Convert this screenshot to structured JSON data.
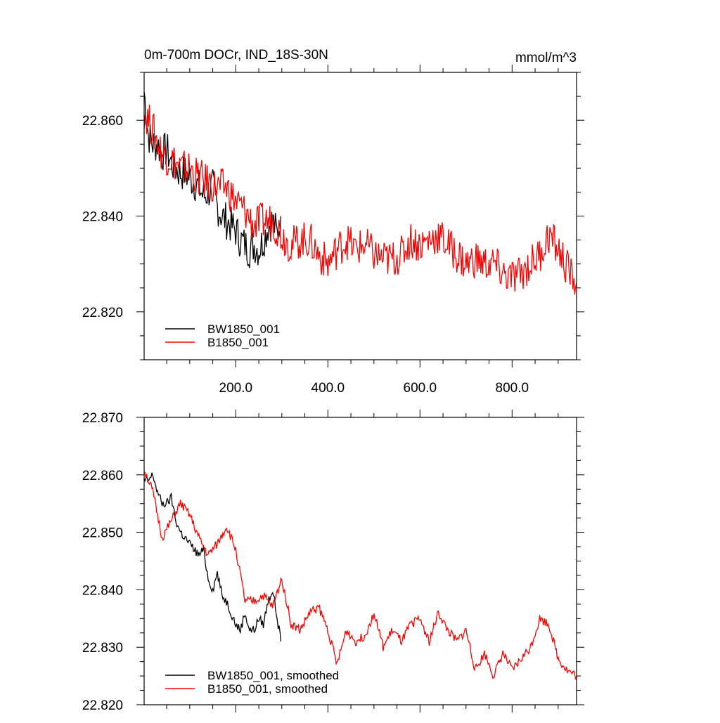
{
  "chart_data": [
    {
      "type": "line",
      "title": "0m-700m DOCr, IND_18S-30N",
      "units": "mmol/m^3",
      "xlim": [
        1,
        940
      ],
      "ylim": [
        22.81,
        22.87
      ],
      "x_tick_labels": [
        "200.0",
        "400.0",
        "600.0",
        "800.0"
      ],
      "x_tick_values": [
        200,
        400,
        600,
        800
      ],
      "y_tick_labels": [
        "22.820",
        "22.840",
        "22.860"
      ],
      "y_tick_values": [
        22.82,
        22.84,
        22.86
      ],
      "legend_position": "bottom-left",
      "series": [
        {
          "name": "BW1850_001",
          "color": "#000000",
          "x": [
            1,
            10,
            20,
            30,
            40,
            50,
            60,
            70,
            80,
            90,
            100,
            110,
            120,
            130,
            140,
            150,
            160,
            170,
            180,
            190,
            200,
            210,
            220,
            230,
            240,
            250,
            260,
            270,
            280,
            290,
            298
          ],
          "y": [
            22.866,
            22.857,
            22.855,
            22.855,
            22.853,
            22.854,
            22.851,
            22.85,
            22.849,
            22.849,
            22.848,
            22.847,
            22.846,
            22.844,
            22.845,
            22.846,
            22.842,
            22.84,
            22.839,
            22.838,
            22.837,
            22.835,
            22.834,
            22.833,
            22.834,
            22.833,
            22.835,
            22.838,
            22.839,
            22.836,
            22.84
          ]
        },
        {
          "name": "B1850_001",
          "color": "#ff0000",
          "x": [
            1,
            20,
            40,
            60,
            80,
            100,
            120,
            140,
            160,
            180,
            200,
            220,
            240,
            260,
            280,
            300,
            320,
            340,
            360,
            380,
            400,
            420,
            440,
            460,
            480,
            500,
            520,
            540,
            560,
            580,
            600,
            620,
            640,
            660,
            680,
            700,
            720,
            740,
            760,
            780,
            800,
            820,
            840,
            860,
            880,
            900,
            920,
            940
          ],
          "y": [
            22.862,
            22.858,
            22.853,
            22.852,
            22.85,
            22.85,
            22.848,
            22.847,
            22.846,
            22.846,
            22.843,
            22.841,
            22.838,
            22.839,
            22.839,
            22.836,
            22.834,
            22.835,
            22.835,
            22.832,
            22.83,
            22.833,
            22.835,
            22.833,
            22.834,
            22.832,
            22.831,
            22.831,
            22.832,
            22.835,
            22.834,
            22.835,
            22.836,
            22.834,
            22.832,
            22.83,
            22.831,
            22.83,
            22.83,
            22.828,
            22.827,
            22.828,
            22.83,
            22.832,
            22.836,
            22.833,
            22.829,
            22.826
          ]
        }
      ]
    },
    {
      "type": "line",
      "title": "",
      "xlim": [
        1,
        940
      ],
      "ylim": [
        22.82,
        22.87
      ],
      "x_tick_values": [
        200,
        400,
        600,
        800
      ],
      "y_tick_labels": [
        "22.820",
        "22.830",
        "22.840",
        "22.850",
        "22.860",
        "22.870"
      ],
      "y_tick_values": [
        22.82,
        22.83,
        22.84,
        22.85,
        22.86,
        22.87
      ],
      "legend_position": "bottom-left",
      "series": [
        {
          "name": "BW1850_001, smoothed",
          "color": "#000000",
          "x": [
            1,
            10,
            20,
            30,
            40,
            50,
            60,
            70,
            80,
            90,
            100,
            110,
            120,
            130,
            140,
            150,
            160,
            170,
            180,
            190,
            200,
            210,
            220,
            230,
            240,
            250,
            260,
            270,
            280,
            290,
            298
          ],
          "y": [
            22.859,
            22.859,
            22.86,
            22.857,
            22.855,
            22.855,
            22.856,
            22.852,
            22.85,
            22.849,
            22.848,
            22.847,
            22.846,
            22.847,
            22.842,
            22.84,
            22.843,
            22.839,
            22.838,
            22.836,
            22.834,
            22.833,
            22.836,
            22.833,
            22.833,
            22.835,
            22.834,
            22.838,
            22.84,
            22.835,
            22.831
          ]
        },
        {
          "name": "B1850_001, smoothed",
          "color": "#ff0000",
          "x": [
            1,
            20,
            40,
            60,
            80,
            100,
            120,
            140,
            160,
            180,
            200,
            220,
            240,
            260,
            280,
            300,
            320,
            340,
            360,
            380,
            400,
            420,
            440,
            460,
            480,
            500,
            520,
            540,
            560,
            580,
            600,
            620,
            640,
            660,
            680,
            700,
            720,
            740,
            760,
            780,
            800,
            820,
            840,
            860,
            880,
            900,
            920,
            940
          ],
          "y": [
            22.861,
            22.857,
            22.849,
            22.852,
            22.855,
            22.853,
            22.849,
            22.846,
            22.848,
            22.851,
            22.847,
            22.838,
            22.838,
            22.839,
            22.837,
            22.842,
            22.834,
            22.833,
            22.836,
            22.837,
            22.833,
            22.827,
            22.833,
            22.831,
            22.832,
            22.836,
            22.83,
            22.833,
            22.831,
            22.834,
            22.835,
            22.831,
            22.836,
            22.833,
            22.831,
            22.833,
            22.826,
            22.829,
            22.825,
            22.829,
            22.826,
            22.828,
            22.83,
            22.835,
            22.834,
            22.828,
            22.826,
            22.825
          ]
        }
      ]
    }
  ]
}
